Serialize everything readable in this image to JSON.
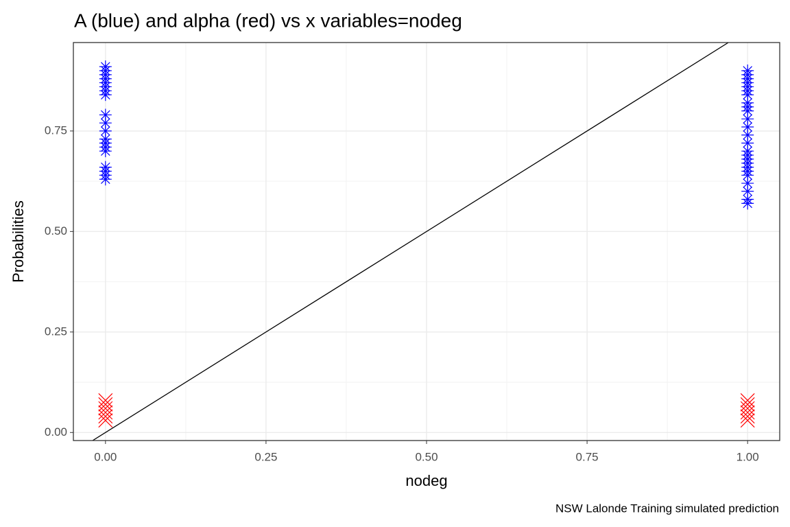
{
  "chart_data": {
    "type": "scatter",
    "title": "A (blue) and alpha (red) vs x variables=nodeg",
    "x_label": "nodeg",
    "y_label": "Probabilities",
    "caption": "NSW Lalonde Training simulated prediction",
    "xlim": [
      -0.05,
      1.05
    ],
    "ylim": [
      -0.02,
      0.97
    ],
    "xticks": [
      {
        "value": 0,
        "label": "0.00"
      },
      {
        "value": 0.25,
        "label": "0.25"
      },
      {
        "value": 0.5,
        "label": "0.50"
      },
      {
        "value": 0.75,
        "label": "0.75"
      },
      {
        "value": 1,
        "label": "1.00"
      }
    ],
    "yticks": [
      {
        "value": 0,
        "label": "0.00"
      },
      {
        "value": 0.25,
        "label": "0.25"
      },
      {
        "value": 0.5,
        "label": "0.50"
      },
      {
        "value": 0.75,
        "label": "0.75"
      }
    ],
    "grid": true,
    "minor_grid": true,
    "series": [
      {
        "color": "#0000ff",
        "marker": "asterisk",
        "x": [
          0,
          0,
          0,
          0,
          0,
          0,
          0,
          0,
          0,
          0,
          0,
          0,
          0,
          0,
          0,
          0,
          0,
          0,
          0,
          1,
          1,
          1,
          1,
          1,
          1,
          1,
          1,
          1,
          1,
          1,
          1,
          1,
          1,
          1,
          1,
          1,
          1,
          1,
          1,
          1,
          1,
          1,
          1,
          1
        ],
        "values": [
          0.63,
          0.64,
          0.65,
          0.66,
          0.7,
          0.71,
          0.72,
          0.73,
          0.75,
          0.77,
          0.79,
          0.84,
          0.85,
          0.86,
          0.87,
          0.88,
          0.89,
          0.9,
          0.91,
          0.57,
          0.58,
          0.6,
          0.62,
          0.64,
          0.65,
          0.66,
          0.67,
          0.68,
          0.69,
          0.7,
          0.72,
          0.74,
          0.76,
          0.78,
          0.8,
          0.81,
          0.82,
          0.84,
          0.85,
          0.86,
          0.87,
          0.88,
          0.89,
          0.9
        ]
      },
      {
        "color": "#ff0000",
        "marker": "x",
        "x": [
          0,
          0,
          0,
          0,
          0,
          0,
          1,
          1,
          1,
          1,
          1,
          1
        ],
        "values": [
          0.03,
          0.04,
          0.05,
          0.06,
          0.07,
          0.08,
          0.03,
          0.04,
          0.05,
          0.06,
          0.07,
          0.08
        ]
      },
      {
        "color": "#000000",
        "marker": "line",
        "x": [
          -0.02,
          0.97
        ],
        "values": [
          -0.02,
          0.97
        ]
      }
    ]
  }
}
